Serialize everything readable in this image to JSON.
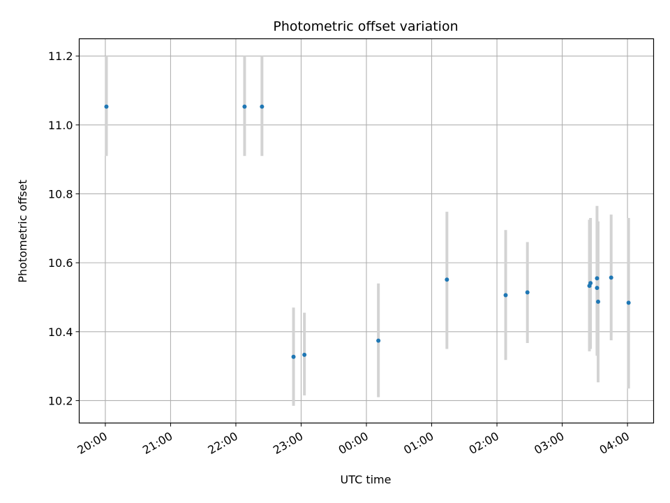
{
  "chart_data": {
    "type": "scatter",
    "title": "Photometric offset variation",
    "xlabel": "UTC time",
    "ylabel": "Photometric offset",
    "grid": true,
    "ylim": [
      10.135,
      11.25
    ],
    "xlim": [
      "19:36",
      "04:24"
    ],
    "x_ticks": [
      "20:00",
      "21:00",
      "22:00",
      "23:00",
      "00:00",
      "01:00",
      "02:00",
      "03:00",
      "04:00"
    ],
    "y_ticks": [
      "10.2",
      "10.4",
      "10.6",
      "10.8",
      "11.0",
      "11.2"
    ],
    "point_color": "#1f77b4",
    "errorbar_color": "#d3d3d3",
    "points": [
      {
        "x": "20:01",
        "y": 11.053,
        "ylow": 10.91,
        "yhigh": 11.2
      },
      {
        "x": "22:08",
        "y": 11.053,
        "ylow": 10.91,
        "yhigh": 11.2
      },
      {
        "x": "22:24",
        "y": 11.053,
        "ylow": 10.91,
        "yhigh": 11.2
      },
      {
        "x": "22:53",
        "y": 10.327,
        "ylow": 10.185,
        "yhigh": 10.47
      },
      {
        "x": "23:03",
        "y": 10.333,
        "ylow": 10.215,
        "yhigh": 10.455
      },
      {
        "x": "00:11",
        "y": 10.374,
        "ylow": 10.21,
        "yhigh": 10.54
      },
      {
        "x": "01:14",
        "y": 10.551,
        "ylow": 10.35,
        "yhigh": 10.748
      },
      {
        "x": "02:08",
        "y": 10.506,
        "ylow": 10.318,
        "yhigh": 10.695
      },
      {
        "x": "02:28",
        "y": 10.514,
        "ylow": 10.367,
        "yhigh": 10.66
      },
      {
        "x": "03:25",
        "y": 10.533,
        "ylow": 10.343,
        "yhigh": 10.725
      },
      {
        "x": "03:26",
        "y": 10.541,
        "ylow": 10.35,
        "yhigh": 10.73
      },
      {
        "x": "03:32",
        "y": 10.555,
        "ylow": 10.345,
        "yhigh": 10.765
      },
      {
        "x": "03:32",
        "y": 10.527,
        "ylow": 10.33,
        "yhigh": 10.725
      },
      {
        "x": "03:33",
        "y": 10.487,
        "ylow": 10.253,
        "yhigh": 10.72
      },
      {
        "x": "03:45",
        "y": 10.557,
        "ylow": 10.375,
        "yhigh": 10.74
      },
      {
        "x": "04:01",
        "y": 10.484,
        "ylow": 10.235,
        "yhigh": 10.73
      }
    ]
  }
}
